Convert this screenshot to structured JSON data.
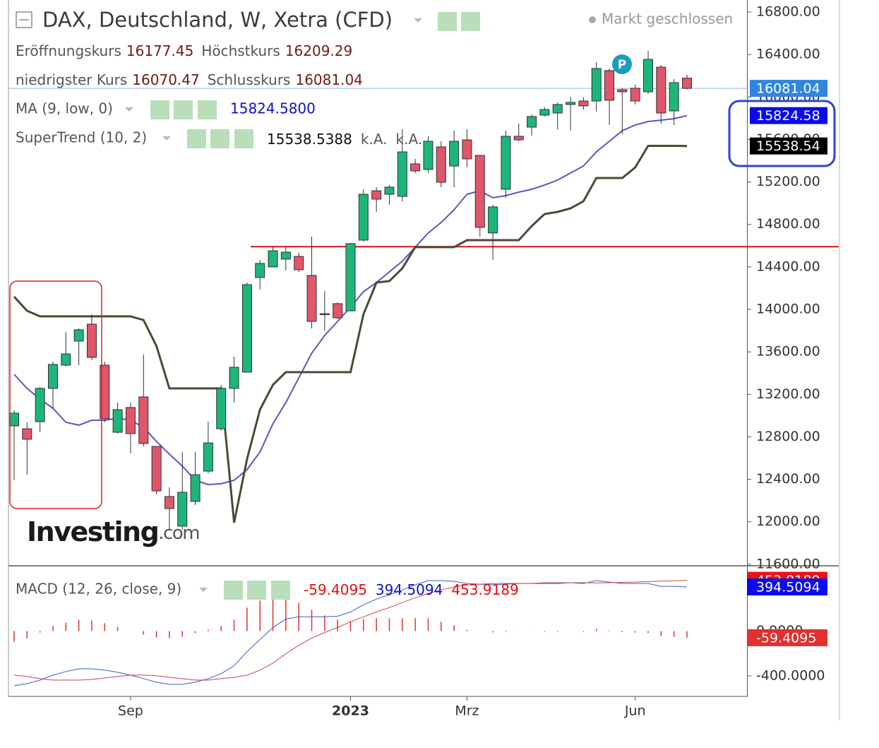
{
  "chart_data": [
    {
      "type": "candlestick",
      "title": "DAX, Deutschland, W, Xetra (CFD)",
      "status": "Markt geschlossen",
      "ohlc_names": [
        "Eröffnungskurs",
        "Höchstkurs",
        "niedrigster Kurs",
        "Schlusskurs"
      ],
      "categories": [
        null,
        null,
        null,
        null,
        null,
        null,
        null,
        null,
        null,
        "Sep",
        null,
        null,
        null,
        null,
        null,
        null,
        null,
        null,
        null,
        null,
        null,
        null,
        null,
        null,
        null,
        null,
        "2023",
        null,
        null,
        null,
        null,
        null,
        null,
        null,
        null,
        "Mrz",
        null,
        null,
        null,
        null,
        null,
        null,
        null,
        null,
        null,
        null,
        null,
        null,
        "Jun",
        null,
        null,
        null,
        null
      ],
      "open": [
        12903,
        12876,
        12943,
        13256,
        13475,
        13701,
        13861,
        13475,
        12843,
        13076,
        13176,
        12710,
        12238,
        11959,
        12192,
        12477,
        12876,
        13256,
        13409,
        14300,
        14400,
        14473,
        14499,
        14320,
        13960,
        14054,
        13987,
        14652,
        15117,
        15084,
        15064,
        15370,
        15317,
        15530,
        15350,
        15596,
        15450,
        14719,
        15131,
        15630,
        15716,
        15829,
        15849,
        15929,
        15962,
        15962,
        16248,
        16069,
        16082,
        16049,
        16281,
        15869,
        16177.45
      ],
      "high": [
        13050,
        12937,
        13270,
        13508,
        13788,
        13820,
        13954,
        13508,
        13123,
        13123,
        13575,
        12710,
        12324,
        12657,
        12657,
        12943,
        13289,
        13555,
        14253,
        14466,
        14586,
        14586,
        14533,
        14685,
        14173,
        14067,
        14625,
        15131,
        15151,
        15171,
        15696,
        15417,
        15630,
        15583,
        15683,
        15696,
        15450,
        14985,
        15683,
        15749,
        15836,
        15902,
        15949,
        16002,
        15996,
        16328,
        16268,
        16082,
        16115,
        16434,
        16301,
        16168,
        16209.29
      ],
      "low": [
        12391,
        12444,
        12843,
        13069,
        13460,
        13475,
        13522,
        12937,
        12830,
        12644,
        12710,
        12258,
        11925,
        11925,
        12158,
        12457,
        12857,
        13123,
        13409,
        14187,
        14400,
        14366,
        14353,
        13821,
        13801,
        13907,
        13980,
        14639,
        14918,
        14985,
        15018,
        15284,
        15284,
        15151,
        15151,
        15337,
        14685,
        14466,
        15051,
        15583,
        15636,
        15816,
        15696,
        15683,
        15882,
        15862,
        15736,
        15650,
        15929,
        16029,
        15749,
        15736,
        16070.47
      ],
      "close": [
        13023,
        12777,
        13256,
        13482,
        13581,
        13808,
        13548,
        12970,
        13056,
        12830,
        12737,
        12291,
        12125,
        12278,
        12444,
        12743,
        13256,
        13455,
        14233,
        14433,
        14552,
        14539,
        14373,
        13887,
        13950,
        13921,
        14619,
        15084,
        15038,
        15151,
        15483,
        15304,
        15583,
        15197,
        15583,
        15417,
        14772,
        14965,
        15630,
        15596,
        15816,
        15882,
        15929,
        15949,
        15916,
        16268,
        15969,
        16049,
        15962,
        16354,
        15849,
        16135,
        16081.04
      ],
      "up_color": "#1db57a",
      "down_color": "#e0566a",
      "close_line_color": "#8fb8e0",
      "close_box_color": "#2f86de",
      "series": [
        {
          "name": "MA (9, low, 0)",
          "color": "#5858c0",
          "box_color": "#0a0aee",
          "legend_value_label": "15824.5800",
          "values": [
            13388,
            13256,
            13156,
            13069,
            12937,
            12910,
            12956,
            12956,
            12976,
            12956,
            12890,
            12757,
            12637,
            12524,
            12391,
            12351,
            12358,
            12391,
            12491,
            12657,
            12923,
            13123,
            13355,
            13588,
            13754,
            13887,
            14020,
            14167,
            14253,
            14353,
            14453,
            14586,
            14719,
            14818,
            14938,
            15084,
            15117,
            15051,
            15071,
            15104,
            15131,
            15171,
            15217,
            15284,
            15350,
            15483,
            15583,
            15683,
            15736,
            15769,
            15782,
            15796,
            15824.58
          ]
        },
        {
          "name": "SuperTrend (10, 2)",
          "color": "#4a4a36",
          "box_color": "#000000",
          "legend_extra": [
            "k.A.",
            "k.A."
          ],
          "axis_label": "15538.54",
          "values": [
            14120,
            13987,
            13934,
            13934,
            13934,
            13934,
            13934,
            13934,
            13934,
            13934,
            13900,
            13655,
            13256,
            13256,
            13256,
            13256,
            13256,
            11992,
            12591,
            13056,
            13289,
            13409,
            13409,
            13409,
            13409,
            13409,
            13409,
            13954,
            14253,
            14266,
            14386,
            14586,
            14586,
            14586,
            14586,
            14652,
            14652,
            14652,
            14652,
            14652,
            14785,
            14898,
            14918,
            14951,
            15018,
            15237,
            15237,
            15237,
            15337,
            15540,
            15540,
            15540,
            15538.5388
          ]
        }
      ],
      "hlines": [
        {
          "value": 14590,
          "color": "#dd1111"
        }
      ],
      "ylim": [
        11586,
        16913
      ],
      "yticks": [
        {
          "value": 16800,
          "label": "16800.00"
        },
        {
          "value": 16400,
          "label": "16400.00"
        },
        {
          "value": 16000,
          "label": "16000.00"
        },
        {
          "value": 15600,
          "label": "15600.00"
        },
        {
          "value": 15200,
          "label": "15200.00"
        },
        {
          "value": 14800,
          "label": "14800.00"
        },
        {
          "value": 14400,
          "label": "14400.00"
        },
        {
          "value": 14000,
          "label": "14000.00"
        },
        {
          "value": 13600,
          "label": "13600.00"
        },
        {
          "value": 13200,
          "label": "13200.00"
        },
        {
          "value": 12800,
          "label": "12800.00"
        },
        {
          "value": 12400,
          "label": "12400.00"
        },
        {
          "value": 12000,
          "label": "12000.00"
        },
        {
          "value": 11600,
          "label": "11600.00"
        }
      ],
      "grid": false,
      "branding": {
        "logo": "Investing",
        "logo_suffix": ".com",
        "marker": "P"
      }
    },
    {
      "type": "macd",
      "name": "MACD (12, 26, close, 9)",
      "histogram": {
        "color": "#e03030",
        "values": [
          -95,
          -64,
          -13,
          44,
          76,
          101,
          95,
          70,
          38,
          0,
          -31,
          -57,
          -63,
          -51,
          -19,
          13,
          44,
          102,
          210,
          273,
          318,
          311,
          254,
          191,
          140,
          101,
          88,
          108,
          115,
          114,
          114,
          115,
          114,
          83,
          51,
          12,
          0,
          -12,
          -7,
          -1,
          -1,
          -7,
          -7,
          0,
          -7,
          21,
          6,
          -10,
          -13,
          -17,
          -46,
          -50,
          -59.4095
        ]
      },
      "series": [
        {
          "color": "#3a5fcd",
          "box_color": "#0a0aee",
          "values": [
            -489,
            -470,
            -438,
            -394,
            -362,
            -337,
            -337,
            -349,
            -368,
            -394,
            -425,
            -457,
            -476,
            -476,
            -457,
            -425,
            -381,
            -311,
            -184,
            -76,
            32,
            108,
            127,
            127,
            127,
            133,
            171,
            235,
            286,
            324,
            368,
            413,
            451,
            451,
            445,
            425,
            419,
            413,
            419,
            425,
            425,
            425,
            425,
            432,
            425,
            451,
            438,
            425,
            425,
            425,
            400,
            400,
            394.5094
          ]
        },
        {
          "color": "#d04050",
          "box_color": "#ee1111",
          "values": [
            -394,
            -406,
            -425,
            -438,
            -438,
            -438,
            -432,
            -419,
            -406,
            -394,
            -394,
            -400,
            -413,
            -425,
            -438,
            -438,
            -425,
            -413,
            -394,
            -349,
            -286,
            -203,
            -127,
            -64,
            -13,
            32,
            83,
            127,
            171,
            210,
            254,
            298,
            337,
            368,
            394,
            413,
            419,
            425,
            426,
            426,
            426,
            432,
            432,
            432,
            432,
            430,
            432,
            435,
            438,
            442,
            446,
            450,
            453.9189
          ]
        }
      ],
      "ylim": [
        -584,
        571
      ],
      "yticks": [
        {
          "value": 0,
          "label": "0.0000"
        },
        {
          "value": -400,
          "label": "-400.0000"
        }
      ]
    }
  ]
}
